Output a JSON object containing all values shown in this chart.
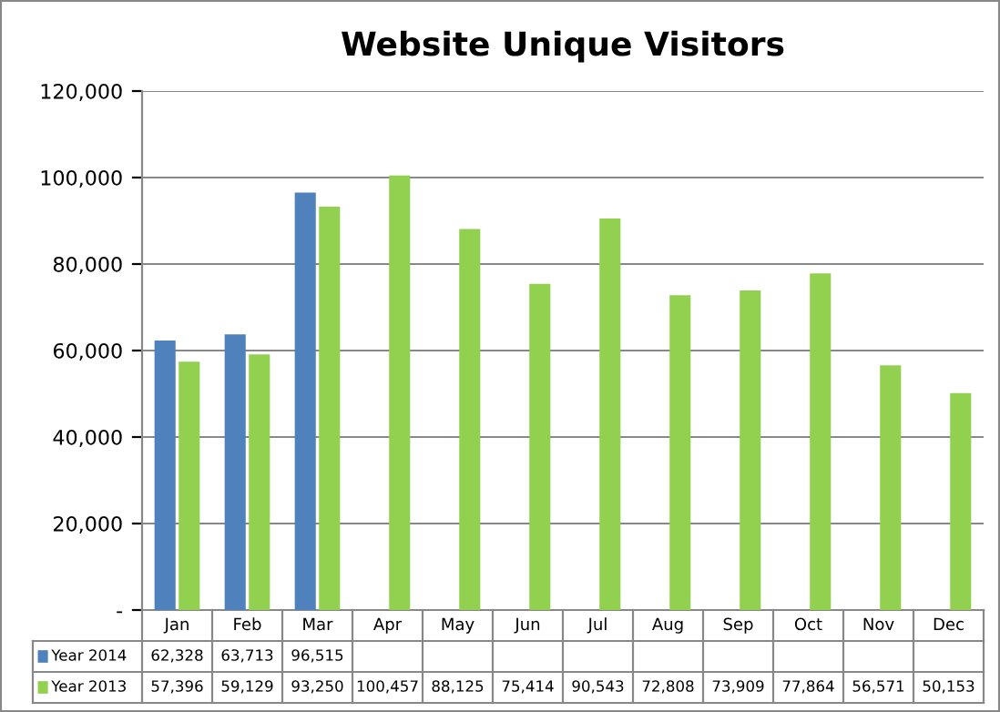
{
  "chart_data": {
    "type": "bar",
    "title": "Website Unique Visitors",
    "categories": [
      "Jan",
      "Feb",
      "Mar",
      "Apr",
      "May",
      "Jun",
      "Jul",
      "Aug",
      "Sep",
      "Oct",
      "Nov",
      "Dec"
    ],
    "series": [
      {
        "name": "Year 2014",
        "color": "#4f81bd",
        "values": [
          62328,
          63713,
          96515,
          null,
          null,
          null,
          null,
          null,
          null,
          null,
          null,
          null
        ],
        "value_labels": [
          "62,328",
          "63,713",
          "96,515",
          null,
          null,
          null,
          null,
          null,
          null,
          null,
          null,
          null
        ]
      },
      {
        "name": "Year 2013",
        "color": "#92d050",
        "values": [
          57396,
          59129,
          93250,
          100457,
          88125,
          75414,
          90543,
          72808,
          73909,
          77864,
          56571,
          50153
        ],
        "value_labels": [
          "57,396",
          "59,129",
          "93,250",
          "100,457",
          "88,125",
          "75,414",
          "90,543",
          "72,808",
          "73,909",
          "77,864",
          "56,571",
          "50,153"
        ]
      }
    ],
    "ylim": [
      0,
      120000
    ],
    "yticks": [
      {
        "value": 0,
        "label": "-"
      },
      {
        "value": 20000,
        "label": "20,000"
      },
      {
        "value": 40000,
        "label": "40,000"
      },
      {
        "value": 60000,
        "label": "60,000"
      },
      {
        "value": 80000,
        "label": "80,000"
      },
      {
        "value": 100000,
        "label": "100,000"
      },
      {
        "value": 120000,
        "label": "120,000"
      }
    ],
    "grid": "y",
    "legend": "bottom"
  }
}
